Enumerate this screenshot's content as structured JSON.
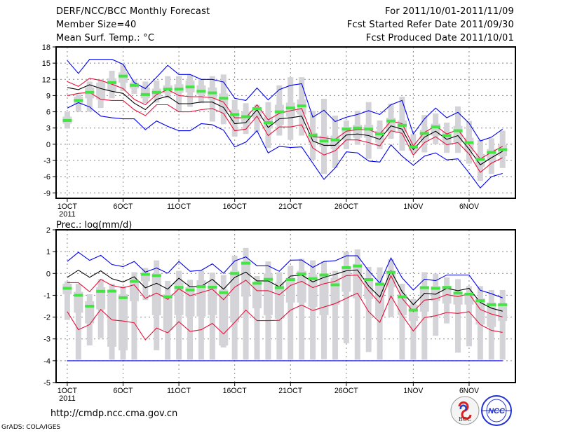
{
  "header": {
    "title": "DERF/NCC/BCC Monthly Forecast",
    "member_size": "Member Size=40",
    "variable": "Mean Surf. Temp.: °C",
    "period": "For 2011/10/01-2011/11/09",
    "started": "Fcst Started Refer Date 2011/09/30",
    "produced": "Fcst Produced Date 2011/10/01"
  },
  "footer": {
    "url": "http://cmdp.ncc.cma.gov.cn",
    "grads": "GrADS: COLA/IGES",
    "logos": [
      "BCC",
      "NCC"
    ]
  },
  "colors": {
    "obs": "#44e444",
    "median": "#000000",
    "percentile": "#e8103a",
    "extreme": "#0000ee",
    "box": "#d4d4d8",
    "grid": "#888888"
  },
  "chart_data": [
    {
      "type": "line",
      "title": "Mean Surf. Temp.: °C",
      "xlabel": "",
      "ylabel": "",
      "x_days": "1..40 (2011/10/01 - 2011/11/09)",
      "xlim": [
        0,
        41.15
      ],
      "ylim": [
        -10,
        18
      ],
      "yticks": [
        -9,
        -6,
        -3,
        0,
        3,
        6,
        9,
        12,
        15,
        18
      ],
      "xticks": [
        {
          "day": 1,
          "label": "1OCT"
        },
        {
          "day": 6,
          "label": "6OCT"
        },
        {
          "day": 11,
          "label": "11OCT"
        },
        {
          "day": 16,
          "label": "16OCT"
        },
        {
          "day": 21,
          "label": "21OCT"
        },
        {
          "day": 26,
          "label": "26OCT"
        },
        {
          "day": 32,
          "label": "1NOV"
        },
        {
          "day": 37,
          "label": "6NOV"
        }
      ],
      "year_label": "2011",
      "grid": true,
      "series": [
        {
          "name": "ensemble-max",
          "color": "#0000ee",
          "values": [
            15.5,
            13.1,
            15.7,
            15.7,
            15.7,
            14.8,
            11.4,
            10.3,
            12.4,
            14.6,
            12.9,
            12.9,
            12.0,
            12.0,
            11.5,
            8.5,
            8.1,
            10.4,
            8.2,
            10.1,
            10.9,
            11.2,
            5.0,
            6.3,
            4.2,
            5.0,
            5.5,
            6.2,
            5.5,
            7.3,
            8.1,
            1.9,
            4.7,
            6.7,
            4.9,
            5.9,
            3.9,
            0.6,
            1.3,
            2.8
          ]
        },
        {
          "name": "upper-percentile",
          "color": "#e8103a",
          "values": [
            11.6,
            10.7,
            12.2,
            11.8,
            11.1,
            10.3,
            8.3,
            7.3,
            9.2,
            10.1,
            9.0,
            8.8,
            8.8,
            8.6,
            7.8,
            4.9,
            4.9,
            7.3,
            4.5,
            5.7,
            6.2,
            6.6,
            1.4,
            1.2,
            0.9,
            2.4,
            2.7,
            2.7,
            1.9,
            4.3,
            3.8,
            -0.3,
            2.2,
            3.4,
            1.9,
            2.7,
            -0.1,
            -2.7,
            -1.5,
            -0.4
          ]
        },
        {
          "name": "median",
          "color": "#000000",
          "values": [
            10.5,
            10.1,
            11.0,
            10.3,
            9.8,
            9.4,
            7.6,
            6.4,
            8.3,
            8.9,
            7.5,
            7.5,
            7.8,
            7.8,
            6.8,
            3.8,
            4.0,
            6.4,
            3.1,
            4.7,
            4.9,
            5.2,
            0.6,
            -0.2,
            -0.2,
            1.7,
            1.9,
            1.6,
            0.9,
            3.4,
            2.8,
            -1.0,
            1.3,
            2.4,
            0.9,
            1.6,
            -0.9,
            -3.8,
            -2.5,
            -1.3
          ]
        },
        {
          "name": "lower-percentile",
          "color": "#e8103a",
          "values": [
            9.0,
            9.4,
            9.6,
            8.3,
            8.1,
            8.1,
            6.4,
            5.3,
            7.3,
            7.3,
            6.0,
            6.0,
            6.4,
            6.6,
            5.7,
            2.5,
            2.8,
            5.2,
            1.6,
            3.2,
            3.2,
            3.6,
            -0.7,
            -2.0,
            -1.2,
            0.8,
            0.8,
            0.3,
            -0.3,
            2.5,
            2.0,
            -2.0,
            0.3,
            1.4,
            -0.1,
            0.3,
            -1.8,
            -5.2,
            -3.5,
            -2.5
          ]
        },
        {
          "name": "ensemble-min",
          "color": "#0000ee",
          "values": [
            6.7,
            7.7,
            6.9,
            5.2,
            4.9,
            4.7,
            4.7,
            2.7,
            4.3,
            3.3,
            2.5,
            2.5,
            3.8,
            3.6,
            2.6,
            -0.5,
            0.4,
            2.5,
            -1.6,
            -0.4,
            -0.6,
            -0.5,
            -3.5,
            -6.5,
            -4.4,
            -1.4,
            -1.6,
            -3.1,
            -3.3,
            -0.1,
            -2.2,
            -3.9,
            -2.2,
            -1.6,
            -2.9,
            -2.7,
            -5.3,
            -8.1,
            -6.0,
            -5.4
          ]
        }
      ],
      "observed": [
        4.4,
        8.1,
        9.6,
        null,
        11.4,
        12.6,
        10.9,
        9.2,
        9.6,
        10.2,
        10.2,
        10.6,
        9.8,
        9.5,
        8.5,
        5.5,
        5.1,
        6.6,
        4.0,
        6.0,
        6.7,
        7.1,
        1.7,
        0.6,
        0.8,
        2.8,
        3.0,
        2.8,
        1.9,
        4.3,
        3.5,
        -0.5,
        2.0,
        3.2,
        1.6,
        2.5,
        0.3,
        -2.8,
        -1.5,
        -1.0
      ],
      "box": {
        "whisker_high": [
          6.0,
          9.2,
          11.6,
          12.0,
          13.6,
          14.8,
          12.0,
          11.6,
          11.8,
          12.6,
          12.6,
          12.9,
          12.1,
          12.6,
          12.9,
          8.2,
          7.6,
          7.3,
          7.8,
          10.9,
          12.4,
          12.4,
          6.2,
          8.4,
          5.3,
          4.4,
          6.2,
          7.8,
          4.4,
          7.5,
          8.8,
          1.9,
          5.4,
          5.7,
          4.0,
          7.0,
          4.3,
          0.8,
          1.1,
          2.5
        ],
        "whisker_low": [
          2.9,
          6.0,
          6.0,
          6.7,
          8.5,
          9.8,
          9.3,
          7.6,
          7.7,
          8.5,
          6.0,
          6.9,
          7.6,
          4.2,
          3.7,
          1.4,
          1.9,
          2.3,
          -0.7,
          1.6,
          0.8,
          1.6,
          -2.9,
          -5.5,
          -4.4,
          -0.9,
          -0.1,
          -2.7,
          -0.9,
          1.0,
          -1.2,
          -1.7,
          -1.5,
          0.0,
          -1.6,
          -1.6,
          -3.6,
          -6.8,
          -5.5,
          -4.4
        ],
        "box_high": [
          5.1,
          8.8,
          10.5,
          11.4,
          12.2,
          13.3,
          11.4,
          10.5,
          10.3,
          10.9,
          11.1,
          11.8,
          10.9,
          10.5,
          9.4,
          6.4,
          6.0,
          6.8,
          5.1,
          7.3,
          7.7,
          8.3,
          2.1,
          1.6,
          1.6,
          3.2,
          3.6,
          3.6,
          2.5,
          4.9,
          4.4,
          -0.1,
          2.7,
          3.8,
          2.3,
          3.4,
          1.2,
          -1.8,
          -0.9,
          -0.1
        ],
        "box_low": [
          3.8,
          7.3,
          8.5,
          8.3,
          9.8,
          11.4,
          10.3,
          8.5,
          8.8,
          9.4,
          9.5,
          9.6,
          9.2,
          8.3,
          6.0,
          4.0,
          3.8,
          4.7,
          2.9,
          3.6,
          5.1,
          5.5,
          0.3,
          -0.5,
          -0.9,
          0.8,
          1.2,
          1.2,
          0.3,
          2.3,
          2.3,
          -1.2,
          0.8,
          1.6,
          -0.1,
          0.3,
          -1.4,
          -4.2,
          -3.1,
          -2.2
        ]
      }
    },
    {
      "type": "line",
      "title": "Prec.: log(mm/d)",
      "xlabel": "",
      "ylabel": "",
      "xlim": [
        0,
        41.15
      ],
      "ylim": [
        -5,
        2
      ],
      "yticks": [
        -5,
        -4,
        -3,
        -2,
        -1,
        0,
        1,
        2
      ],
      "xticks": [
        {
          "day": 1,
          "label": "1OCT"
        },
        {
          "day": 6,
          "label": "6OCT"
        },
        {
          "day": 11,
          "label": "11OCT"
        },
        {
          "day": 16,
          "label": "16OCT"
        },
        {
          "day": 21,
          "label": "21OCT"
        },
        {
          "day": 26,
          "label": "26OCT"
        },
        {
          "day": 32,
          "label": "1NOV"
        },
        {
          "day": 37,
          "label": "6NOV"
        }
      ],
      "year_label": "2011",
      "grid": true,
      "series": [
        {
          "name": "ensemble-max",
          "color": "#0000ee",
          "values": [
            0.55,
            0.97,
            0.6,
            0.83,
            0.41,
            0.31,
            0.55,
            0.06,
            0.25,
            0.01,
            0.55,
            0.1,
            0.14,
            0.44,
            0.01,
            0.57,
            0.76,
            0.35,
            0.35,
            0.1,
            0.61,
            0.62,
            0.28,
            0.55,
            0.58,
            0.81,
            0.81,
            0.12,
            -0.44,
            0.71,
            -0.2,
            -0.76,
            -0.26,
            -0.33,
            -0.07,
            -0.07,
            -0.07,
            -0.77,
            -0.93,
            -1.12
          ]
        },
        {
          "name": "upper-percentile",
          "color": "#e8103a",
          "values": [
            -0.42,
            -0.42,
            -0.84,
            -0.27,
            -0.55,
            -0.66,
            -0.52,
            -1.14,
            -0.9,
            -1.19,
            -0.7,
            -1.02,
            -0.87,
            -0.72,
            -1.2,
            -0.63,
            -0.31,
            -0.79,
            -0.79,
            -0.98,
            -0.55,
            -0.36,
            -0.65,
            -0.47,
            -0.36,
            -0.1,
            -0.07,
            -0.79,
            -1.36,
            -0.1,
            -1.14,
            -1.75,
            -1.22,
            -1.17,
            -0.97,
            -1.06,
            -0.93,
            -1.65,
            -1.86,
            -1.99
          ]
        },
        {
          "name": "median",
          "color": "#000000",
          "values": [
            -0.18,
            0.15,
            -0.18,
            0.12,
            -0.24,
            -0.39,
            -0.15,
            -0.66,
            -0.45,
            -0.72,
            -0.22,
            -0.61,
            -0.59,
            -0.27,
            -0.72,
            -0.18,
            0.06,
            -0.34,
            -0.34,
            -0.61,
            -0.12,
            -0.07,
            -0.39,
            -0.18,
            -0.04,
            0.12,
            0.16,
            -0.58,
            -1.08,
            0.12,
            -0.84,
            -1.43,
            -0.91,
            -0.95,
            -0.68,
            -0.79,
            -0.68,
            -1.33,
            -1.59,
            -1.73
          ]
        },
        {
          "name": "lower-percentile",
          "color": "#e8103a",
          "values": [
            -1.75,
            -2.58,
            -2.34,
            -1.65,
            -2.13,
            -2.18,
            -2.26,
            -3.04,
            -2.5,
            -2.72,
            -2.21,
            -2.66,
            -2.58,
            -2.29,
            -2.77,
            -2.24,
            -1.68,
            -2.16,
            -2.16,
            -2.15,
            -1.68,
            -1.45,
            -1.7,
            -1.54,
            -1.38,
            -1.14,
            -0.9,
            -1.75,
            -2.24,
            -1.03,
            -1.91,
            -2.64,
            -2.02,
            -1.94,
            -1.79,
            -1.83,
            -1.75,
            -2.34,
            -2.61,
            -2.7
          ]
        },
        {
          "name": "ensemble-min",
          "color": "#0000ee",
          "values": [
            -4,
            -4,
            -4,
            -4,
            -4,
            -4,
            -4,
            -4,
            -4,
            -4,
            -4,
            -4,
            -4,
            -4,
            -4,
            -4,
            -4,
            -4,
            -4,
            -4,
            -4,
            -4,
            -4,
            -4,
            -4,
            -4,
            -4,
            -4,
            -4,
            -4,
            -4,
            -4,
            -4,
            -4,
            -4,
            -4,
            -4,
            -4,
            -4,
            -4
          ]
        }
      ],
      "observed": [
        -0.68,
        -1.0,
        -1.5,
        -0.82,
        -0.81,
        -1.11,
        -0.36,
        -0.04,
        -0.1,
        -1.07,
        -0.64,
        -0.76,
        -0.6,
        -0.63,
        -0.88,
        0,
        0.47,
        -0.45,
        -0.27,
        -0.65,
        -0.28,
        -0.02,
        -0.24,
        -0.07,
        -0.52,
        0.27,
        0.34,
        -0.28,
        -0.49,
        0.05,
        -1.07,
        -1.68,
        -0.65,
        -0.68,
        -0.64,
        -0.9,
        -0.95,
        -1.25,
        -1.43,
        -1.43
      ],
      "box": {
        "whisker_high": [
          -0.36,
          -0.47,
          -0.95,
          -0.26,
          -0.47,
          -0.58,
          0.06,
          0.25,
          0.6,
          -0.34,
          0.12,
          -0.29,
          0.12,
          0.04,
          -0.07,
          0.81,
          1.17,
          -0.12,
          0.55,
          0.06,
          0.35,
          0.67,
          0.6,
          0.55,
          0.12,
          0.99,
          1.1,
          0.3,
          0.28,
          0.65,
          -0.47,
          -1.17,
          0.06,
          -0.01,
          -0.18,
          -0.26,
          -0.58,
          -0.58,
          -0.76,
          -0.76
        ],
        "whisker_low": [
          -2.13,
          -3.95,
          -3.3,
          -2.96,
          -3.95,
          -3.95,
          -3.95,
          -1.22,
          -3.52,
          -3.95,
          -3.95,
          -3.95,
          -3.95,
          -3.95,
          -3.39,
          -3.95,
          -3.95,
          -3.95,
          -3.95,
          -3.95,
          -3.95,
          -3.95,
          -3.95,
          -3.93,
          -3.95,
          -3.2,
          -3.95,
          -3.6,
          -3.95,
          -2.0,
          -3.95,
          -3.95,
          -3.95,
          -2.86,
          -2.29,
          -3.63,
          -3.34,
          -3.95,
          -3.95,
          -3.95
        ],
        "box_high": [
          -0.47,
          -0.84,
          -1.27,
          -0.63,
          -0.84,
          -0.95,
          -0.31,
          0,
          0,
          -0.95,
          -0.42,
          -0.63,
          -0.31,
          -0.42,
          -0.74,
          0.12,
          0.55,
          -0.42,
          0,
          -0.42,
          -0.2,
          0.12,
          -0.04,
          -0.04,
          -0.2,
          0.33,
          0.44,
          -0.31,
          -0.42,
          0.12,
          -0.95,
          -1.43,
          -0.58,
          -0.58,
          -0.63,
          -0.84,
          -0.9,
          -1.14,
          -1.33,
          -1.43
        ],
        "box_low": [
          -0.95,
          -1.8,
          -2.29,
          -1.65,
          -3.36,
          -3.52,
          -1.27,
          -0.36,
          -1.91,
          -2.6,
          -1.91,
          -1.97,
          -1.97,
          -1.91,
          -3.3,
          -2.24,
          -1.06,
          -1.6,
          -1.91,
          -2.07,
          -1.33,
          -1.33,
          -1.54,
          -1.91,
          -1.43,
          -0.84,
          -1.14,
          -1.17,
          -1.97,
          -0.63,
          -1.91,
          -2.18,
          -1.75,
          -1.27,
          -1.38,
          -1.43,
          -1.43,
          -2.34,
          -2.45,
          -2.18
        ]
      }
    }
  ]
}
